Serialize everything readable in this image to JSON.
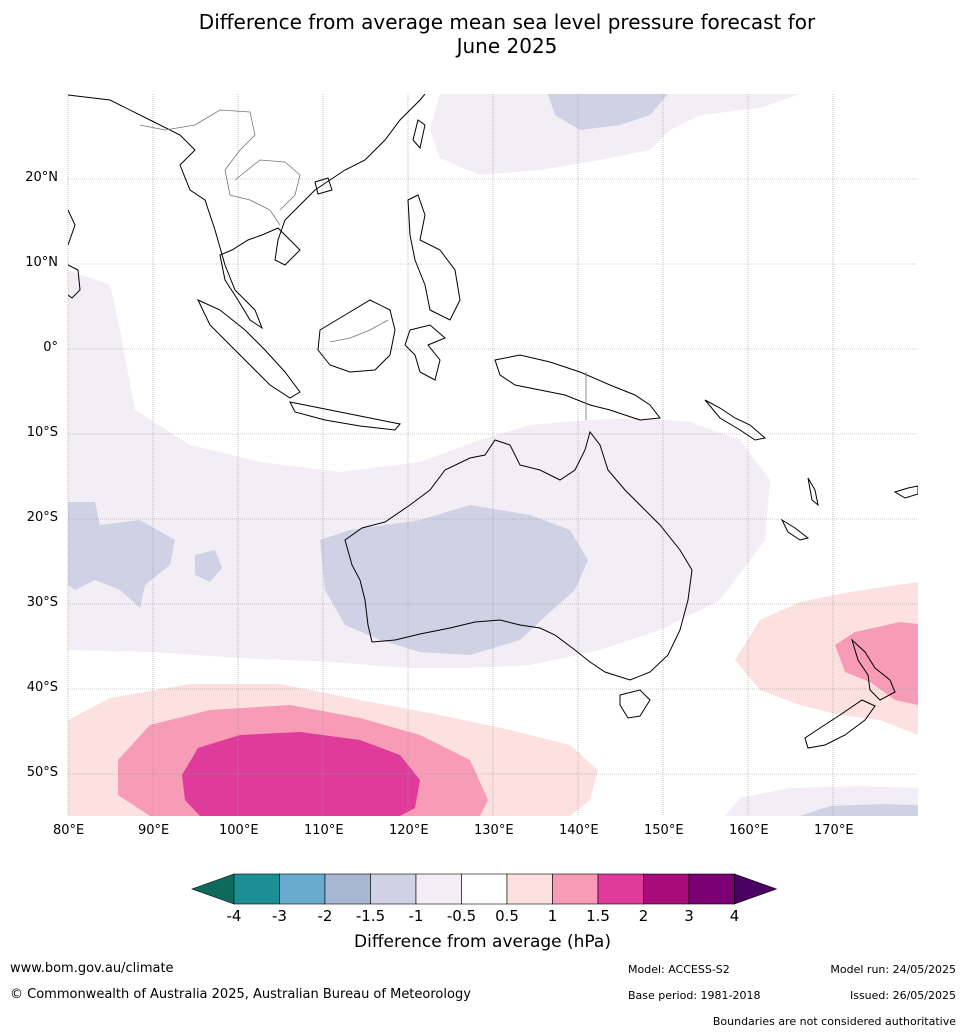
{
  "title_line1": "Difference from average mean sea level pressure forecast for",
  "title_line2": "June 2025",
  "lat_labels": [
    "20°N",
    "10°N",
    "0°",
    "10°S",
    "20°S",
    "30°S",
    "40°S",
    "50°S"
  ],
  "lon_labels": [
    "80°E",
    "90°E",
    "100°E",
    "110°E",
    "120°E",
    "130°E",
    "140°E",
    "150°E",
    "160°E",
    "170°E"
  ],
  "colorbar": {
    "labels": [
      "-4",
      "-3",
      "-2",
      "-1.5",
      "-1",
      "-0.5",
      "0.5",
      "1",
      "1.5",
      "2",
      "3",
      "4"
    ],
    "colors": [
      "#0d6b5e",
      "#1b8f94",
      "#69aacf",
      "#a8b8d4",
      "#cfd1e5",
      "#f3edf6",
      "#ffffff",
      "#fde0e0",
      "#f79bb6",
      "#de3b9b",
      "#aa0b7b",
      "#7b0073",
      "#4a0063"
    ],
    "title": "Difference from average (hPa)"
  },
  "footer": {
    "website": "www.bom.gov.au/climate",
    "copyright": "© Commonwealth of Australia 2025, Australian Bureau of Meteorology",
    "model": "Model: ACCESS-S2",
    "base_period": "Base period: 1981-2018",
    "model_run": "Model run: 24/05/2025",
    "issued": "Issued: 26/05/2025",
    "boundaries": "Boundaries are not considered authoritative"
  }
}
